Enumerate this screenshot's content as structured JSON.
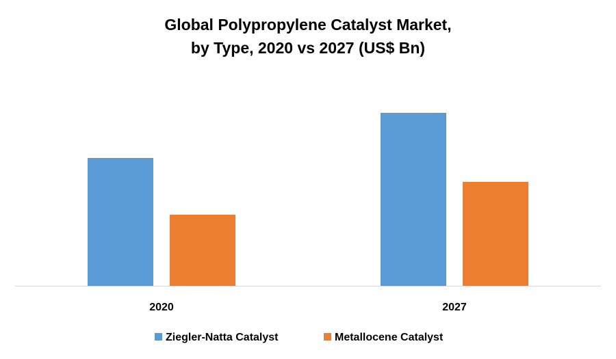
{
  "chart_data": {
    "type": "bar",
    "title": [
      "Global Polypropylene Catalyst Market,",
      "by Type, 2020 vs 2027 (US$ Bn)"
    ],
    "categories": [
      "2020",
      "2027"
    ],
    "series": [
      {
        "name": "Ziegler-Natta Catalyst",
        "color": "#5b9bd5",
        "values": [
          1.87,
          2.53
        ]
      },
      {
        "name": "Metallocene Catalyst",
        "color": "#ed7d31",
        "values": [
          1.04,
          1.52
        ]
      }
    ],
    "ylim": [
      0,
      3
    ],
    "grid": false,
    "legend": "bottom"
  }
}
